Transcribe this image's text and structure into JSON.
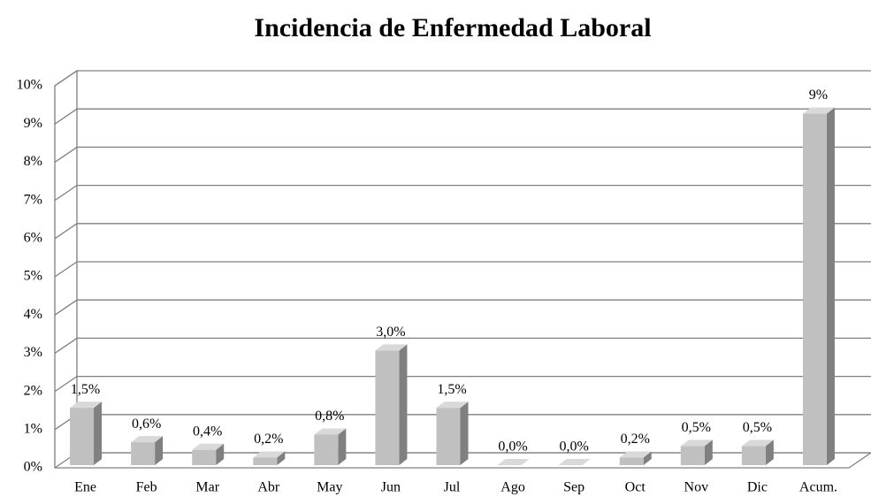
{
  "chart_data": {
    "type": "bar3d",
    "title": "Incidencia de Enfermedad Laboral",
    "categories": [
      "Ene",
      "Feb",
      "Mar",
      "Abr",
      "May",
      "Jun",
      "Jul",
      "Ago",
      "Sep",
      "Oct",
      "Nov",
      "Dic",
      "Acum."
    ],
    "values": [
      1.5,
      0.6,
      0.4,
      0.2,
      0.8,
      3.0,
      1.5,
      0,
      0,
      0.2,
      0.5,
      0.5,
      9.2
    ],
    "value_labels": [
      "1,5%",
      "0,6%",
      "0,4%",
      "0,2%",
      "0,8%",
      "3,0%",
      "1,5%",
      "0,0%",
      "0,0%",
      "0,2%",
      "0,5%",
      "0,5%",
      "9%"
    ],
    "color": "#c0c0c0",
    "ylim": [
      0,
      10
    ],
    "yticks": [
      {
        "value": 0,
        "label": "0%"
      },
      {
        "value": 1,
        "label": "1%"
      },
      {
        "value": 2,
        "label": "2%"
      },
      {
        "value": 3,
        "label": "3%"
      },
      {
        "value": 4,
        "label": "4%"
      },
      {
        "value": 5,
        "label": "5%"
      },
      {
        "value": 6,
        "label": "6%"
      },
      {
        "value": 7,
        "label": "7%"
      },
      {
        "value": 8,
        "label": "8%"
      },
      {
        "value": 9,
        "label": "9%"
      },
      {
        "value": 10,
        "label": "10%"
      }
    ],
    "grid": true
  }
}
